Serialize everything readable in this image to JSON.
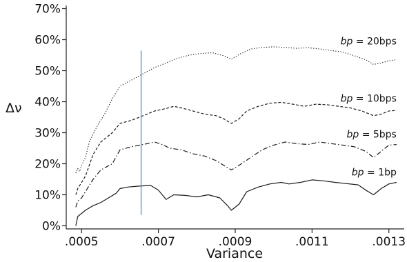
{
  "chart_data": {
    "type": "line",
    "xlabel": "Variance",
    "ylabel": "Δν",
    "xlim": [
      0.00046,
      0.00134
    ],
    "ylim": [
      -0.01,
      0.71
    ],
    "x_ticks": [
      {
        "value": 0.0005,
        "label": ".0005"
      },
      {
        "value": 0.0007,
        "label": ".0007"
      },
      {
        "value": 0.0009,
        "label": ".0009"
      },
      {
        "value": 0.0011,
        "label": ".0011"
      },
      {
        "value": 0.0013,
        "label": ".0013"
      }
    ],
    "y_ticks": [
      {
        "value": 0.0,
        "label": "0%"
      },
      {
        "value": 0.1,
        "label": "10%"
      },
      {
        "value": 0.2,
        "label": "20%"
      },
      {
        "value": 0.3,
        "label": "30%"
      },
      {
        "value": 0.4,
        "label": "40%"
      },
      {
        "value": 0.5,
        "label": "50%"
      },
      {
        "value": 0.6,
        "label": "60%"
      },
      {
        "value": 0.7,
        "label": "70%"
      }
    ],
    "vertical_line": {
      "x": 0.000655,
      "y_range": [
        0.035,
        0.565
      ],
      "color": "#5b8db8"
    },
    "series": [
      {
        "name": "bp = 20bps",
        "label_prefix": "bp",
        "label_suffix": " = 20bps",
        "label_x": 0.00132,
        "label_y": 0.585,
        "style": "dotted",
        "x": [
          0.000485,
          0.00049,
          0.000495,
          0.0005,
          0.00051,
          0.00052,
          0.00054,
          0.00056,
          0.00058,
          0.0006,
          0.00063,
          0.00066,
          0.00069,
          0.00072,
          0.00075,
          0.00078,
          0.00081,
          0.00084,
          0.00087,
          0.00089,
          0.00091,
          0.00094,
          0.00097,
          0.001,
          0.00103,
          0.00106,
          0.00109,
          0.00112,
          0.00115,
          0.00118,
          0.00121,
          0.00124,
          0.00126,
          0.00128,
          0.0013,
          0.00132
        ],
        "y": [
          0.17,
          0.185,
          0.175,
          0.195,
          0.22,
          0.27,
          0.32,
          0.36,
          0.41,
          0.45,
          0.47,
          0.49,
          0.51,
          0.525,
          0.54,
          0.55,
          0.555,
          0.558,
          0.548,
          0.537,
          0.552,
          0.57,
          0.575,
          0.577,
          0.575,
          0.572,
          0.574,
          0.57,
          0.565,
          0.56,
          0.548,
          0.535,
          0.52,
          0.525,
          0.532,
          0.535
        ]
      },
      {
        "name": "bp = 10bps",
        "label_prefix": "bp",
        "label_suffix": " = 10bps",
        "label_x": 0.00132,
        "label_y": 0.4,
        "style": "dashed",
        "x": [
          0.000485,
          0.00049,
          0.0005,
          0.00051,
          0.00053,
          0.00055,
          0.00058,
          0.0006,
          0.00063,
          0.00066,
          0.00069,
          0.00072,
          0.00074,
          0.00076,
          0.00079,
          0.00082,
          0.00085,
          0.00087,
          0.00089,
          0.00091,
          0.00093,
          0.00096,
          0.00099,
          0.00102,
          0.00105,
          0.00108,
          0.00111,
          0.00114,
          0.00117,
          0.0012,
          0.00123,
          0.00126,
          0.00128,
          0.0013,
          0.00132
        ],
        "y": [
          0.1,
          0.12,
          0.14,
          0.16,
          0.23,
          0.27,
          0.3,
          0.33,
          0.34,
          0.355,
          0.37,
          0.378,
          0.385,
          0.38,
          0.37,
          0.36,
          0.355,
          0.345,
          0.33,
          0.345,
          0.37,
          0.385,
          0.395,
          0.398,
          0.392,
          0.385,
          0.392,
          0.39,
          0.385,
          0.38,
          0.37,
          0.355,
          0.36,
          0.37,
          0.372
        ]
      },
      {
        "name": "bp = 5bps",
        "label_prefix": "bp",
        "label_suffix": " = 5bps",
        "label_x": 0.00132,
        "label_y": 0.285,
        "style": "dashdot",
        "x": [
          0.000485,
          0.00049,
          0.0005,
          0.00051,
          0.00053,
          0.00055,
          0.00058,
          0.0006,
          0.00063,
          0.00066,
          0.00069,
          0.00071,
          0.00073,
          0.00076,
          0.00079,
          0.00082,
          0.00085,
          0.00087,
          0.00089,
          0.00091,
          0.00094,
          0.00097,
          0.001,
          0.00103,
          0.00106,
          0.00109,
          0.00112,
          0.00115,
          0.00118,
          0.00121,
          0.00124,
          0.00126,
          0.00128,
          0.0013,
          0.00132
        ],
        "y": [
          0.06,
          0.08,
          0.09,
          0.11,
          0.15,
          0.18,
          0.2,
          0.245,
          0.255,
          0.262,
          0.27,
          0.262,
          0.25,
          0.245,
          0.232,
          0.225,
          0.21,
          0.195,
          0.18,
          0.195,
          0.22,
          0.245,
          0.26,
          0.27,
          0.265,
          0.262,
          0.27,
          0.265,
          0.26,
          0.255,
          0.24,
          0.22,
          0.24,
          0.26,
          0.262
        ]
      },
      {
        "name": "bp = 1bp",
        "label_prefix": "bp",
        "label_suffix": " = 1bp",
        "label_x": 0.00132,
        "label_y": 0.162,
        "style": "solid",
        "x": [
          0.000485,
          0.00049,
          0.0005,
          0.00051,
          0.00053,
          0.00055,
          0.00057,
          0.00059,
          0.0006,
          0.00062,
          0.00065,
          0.00068,
          0.0007,
          0.00072,
          0.00074,
          0.00077,
          0.0008,
          0.00083,
          0.00086,
          0.00088,
          0.00089,
          0.00091,
          0.00093,
          0.00096,
          0.00099,
          0.00102,
          0.00104,
          0.00107,
          0.0011,
          0.00113,
          0.00116,
          0.00119,
          0.00122,
          0.00124,
          0.00126,
          0.00128,
          0.0013,
          0.00132
        ],
        "y": [
          0.0,
          0.03,
          0.04,
          0.05,
          0.065,
          0.075,
          0.09,
          0.105,
          0.12,
          0.125,
          0.128,
          0.13,
          0.115,
          0.085,
          0.1,
          0.098,
          0.093,
          0.1,
          0.09,
          0.065,
          0.05,
          0.07,
          0.11,
          0.125,
          0.135,
          0.14,
          0.135,
          0.14,
          0.148,
          0.145,
          0.14,
          0.136,
          0.132,
          0.115,
          0.1,
          0.12,
          0.135,
          0.14
        ]
      }
    ]
  }
}
